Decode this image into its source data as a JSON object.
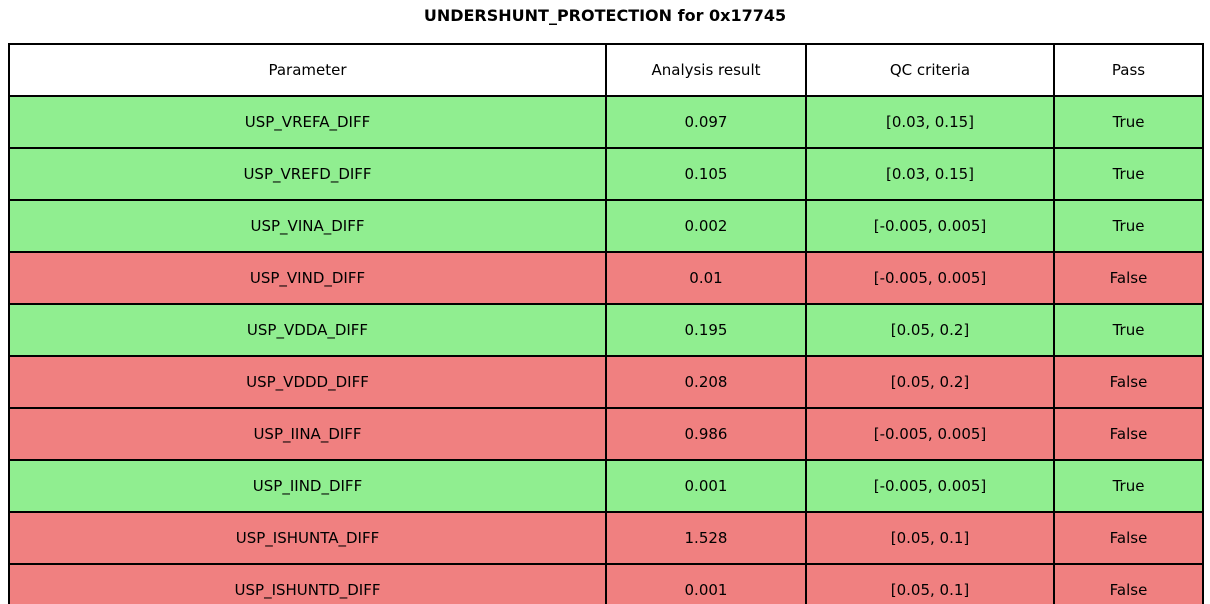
{
  "chart_data": {
    "type": "table",
    "title": "UNDERSHUNT_PROTECTION for 0x17745",
    "headers": [
      "Parameter",
      "Analysis result",
      "QC criteria",
      "Pass"
    ],
    "rows": [
      {
        "parameter": "USP_VREFA_DIFF",
        "result": "0.097",
        "criteria": "[0.03, 0.15]",
        "pass": "True"
      },
      {
        "parameter": "USP_VREFD_DIFF",
        "result": "0.105",
        "criteria": "[0.03, 0.15]",
        "pass": "True"
      },
      {
        "parameter": "USP_VINA_DIFF",
        "result": "0.002",
        "criteria": "[-0.005, 0.005]",
        "pass": "True"
      },
      {
        "parameter": "USP_VIND_DIFF",
        "result": "0.01",
        "criteria": "[-0.005, 0.005]",
        "pass": "False"
      },
      {
        "parameter": "USP_VDDA_DIFF",
        "result": "0.195",
        "criteria": "[0.05, 0.2]",
        "pass": "True"
      },
      {
        "parameter": "USP_VDDD_DIFF",
        "result": "0.208",
        "criteria": "[0.05, 0.2]",
        "pass": "False"
      },
      {
        "parameter": "USP_IINA_DIFF",
        "result": "0.986",
        "criteria": "[-0.005, 0.005]",
        "pass": "False"
      },
      {
        "parameter": "USP_IIND_DIFF",
        "result": "0.001",
        "criteria": "[-0.005, 0.005]",
        "pass": "True"
      },
      {
        "parameter": "USP_ISHUNTA_DIFF",
        "result": "1.528",
        "criteria": "[0.05, 0.1]",
        "pass": "False"
      },
      {
        "parameter": "USP_ISHUNTD_DIFF",
        "result": "0.001",
        "criteria": "[0.05, 0.1]",
        "pass": "False"
      }
    ],
    "colors": {
      "pass_row": "#90EE90",
      "fail_row": "#F08080",
      "header_bg": "#FFFFFF",
      "border": "#000000"
    },
    "layout": {
      "grid": "full-borders",
      "header_position": "top"
    }
  }
}
